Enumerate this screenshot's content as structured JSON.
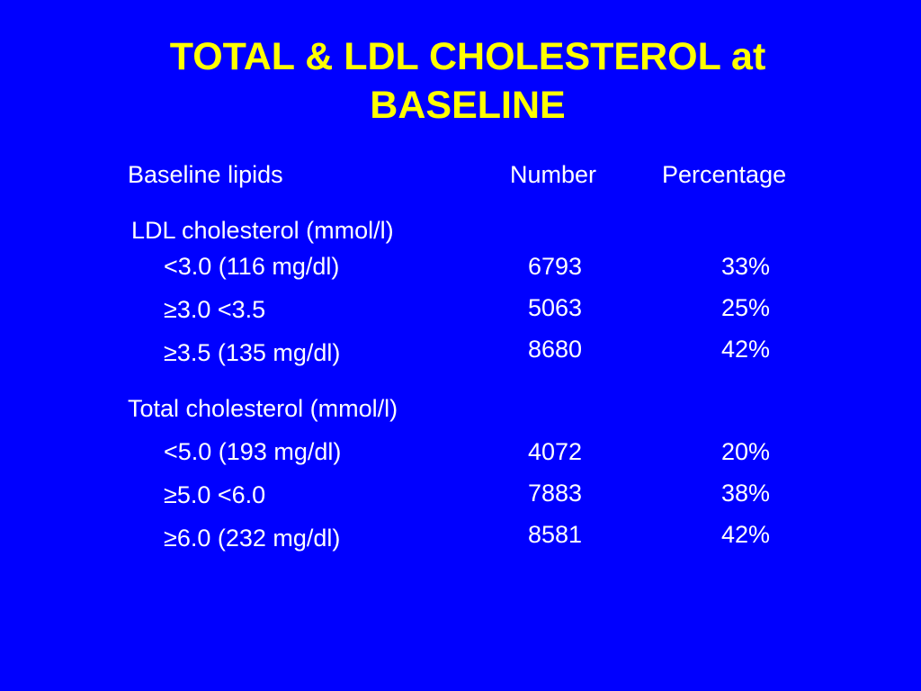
{
  "title": {
    "line1": "TOTAL & LDL CHOLESTEROL at",
    "line2": "BASELINE"
  },
  "columns": {
    "lipids": "Baseline lipids",
    "number": "Number",
    "percentage": "Percentage"
  },
  "ldl": {
    "heading": "LDL cholesterol (mmol/l)",
    "rows": [
      {
        "label": "<3.0 (116 mg/dl)",
        "number": "6793",
        "percentage": "33%"
      },
      {
        "label": "≥3.0 <3.5",
        "number": "5063",
        "percentage": "25%"
      },
      {
        "label": "≥3.5 (135 mg/dl)",
        "number": "8680",
        "percentage": "42%"
      }
    ]
  },
  "total": {
    "heading": "Total cholesterol (mmol/l)",
    "rows": [
      {
        "label": "<5.0 (193 mg/dl)",
        "number": "4072",
        "percentage": "20%"
      },
      {
        "label": "≥5.0 <6.0",
        "number": "7883",
        "percentage": "38%"
      },
      {
        "label": "≥6.0 (232 mg/dl)",
        "number": "8581",
        "percentage": "42%"
      }
    ]
  }
}
